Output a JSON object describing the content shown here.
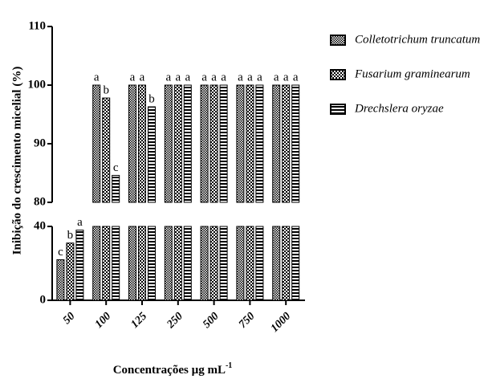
{
  "chart_data": {
    "type": "bar",
    "ylabel": "Inibição do crescimento micelial (%)",
    "xlabel": "Concentrações µg mL",
    "xlabel_sup": "-1",
    "categories": [
      "50",
      "100",
      "125",
      "250",
      "500",
      "750",
      "1000"
    ],
    "series": [
      {
        "name": "Colletotrichum truncatum",
        "color": "#000000",
        "pattern": "checker-fine",
        "values": [
          22,
          100,
          100,
          100,
          100,
          100,
          100
        ],
        "letters": [
          "c",
          "a",
          "a",
          "a",
          "a",
          "a",
          "a"
        ]
      },
      {
        "name": "Fusarium graminearum",
        "color": "#000000",
        "pattern": "checker",
        "values": [
          31,
          97.8,
          100,
          100,
          100,
          100,
          100
        ],
        "letters": [
          "b",
          "b",
          "a",
          "a",
          "a",
          "a",
          "a"
        ]
      },
      {
        "name": "Drechslera oryzae",
        "color": "#000000",
        "pattern": "stripes",
        "values": [
          38,
          84.6,
          96.3,
          100,
          100,
          100,
          100
        ],
        "letters": [
          "a",
          "c",
          "b",
          "a",
          "a",
          "a",
          "a"
        ]
      }
    ],
    "axis_segments": [
      {
        "ylim": [
          0,
          40
        ],
        "yticks": [
          0,
          40
        ]
      },
      {
        "ylim": [
          80,
          110
        ],
        "yticks": [
          80,
          90,
          100,
          110
        ]
      }
    ]
  }
}
